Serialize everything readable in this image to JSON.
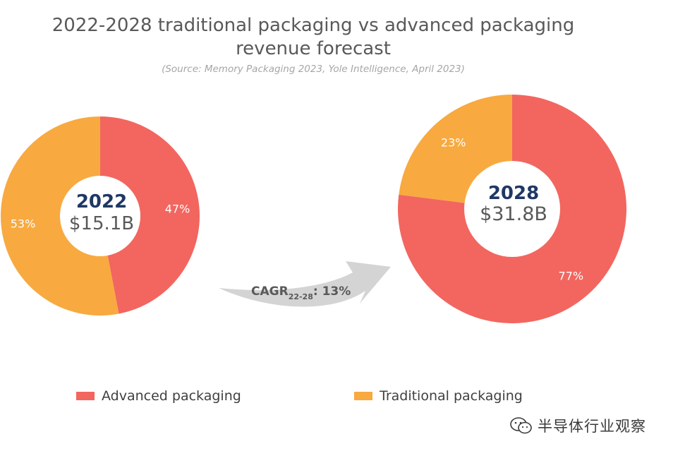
{
  "chart_data": {
    "type": "pie",
    "title_line1": "2022-2028 traditional packaging vs advanced packaging",
    "title_line2": "revenue forecast",
    "subtitle": "(Source: Memory Packaging 2023, Yole Intelligence, April 2023)",
    "colors": {
      "advanced": "#f2665f",
      "traditional": "#f8a940",
      "year": "#1f3864",
      "amount": "#595959"
    },
    "legend": [
      {
        "label": "Advanced packaging",
        "color": "#f2665f"
      },
      {
        "label": "Traditional packaging",
        "color": "#f8a940"
      }
    ],
    "charts": [
      {
        "year": "2022",
        "total": "$15.1B",
        "slices": [
          {
            "series": "Advanced packaging",
            "value": 47,
            "label": "47%"
          },
          {
            "series": "Traditional packaging",
            "value": 53,
            "label": "53%"
          }
        ]
      },
      {
        "year": "2028",
        "total": "$31.8B",
        "slices": [
          {
            "series": "Advanced packaging",
            "value": 77,
            "label": "77%"
          },
          {
            "series": "Traditional packaging",
            "value": 23,
            "label": "23%"
          }
        ]
      }
    ],
    "cagr": {
      "prefix": "CAGR",
      "subscript": "22-28",
      "suffix": ": 13%"
    }
  },
  "watermark": "半导体行业观察",
  "watermark_icon": "wechat-icon"
}
